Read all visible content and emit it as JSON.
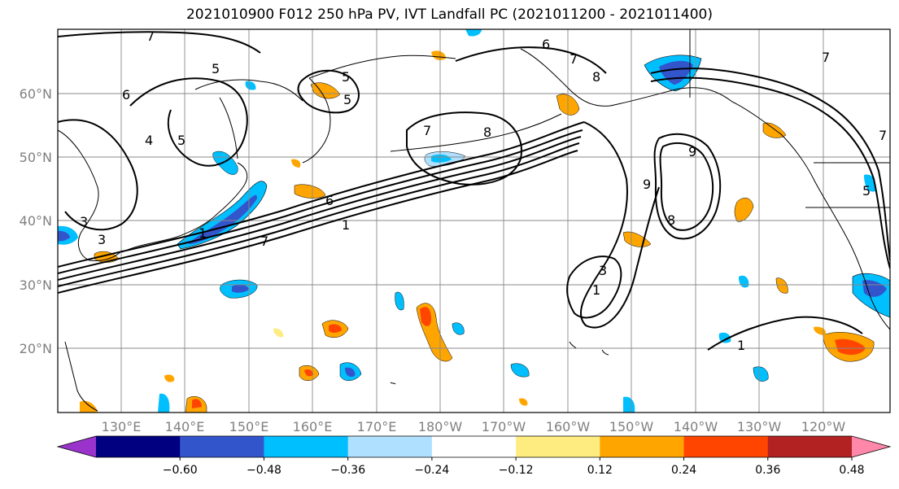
{
  "title": "2021010900 F012 250 hPa PV, IVT Landfall PC (2021011200 - 2021011400)",
  "lat_labels": [
    "60°N",
    "50°N",
    "40°N",
    "30°N",
    "20°N"
  ],
  "lon_labels": [
    "130°E",
    "140°E",
    "150°E",
    "160°E",
    "170°E",
    "180°W",
    "170°W",
    "160°W",
    "150°W",
    "140°W",
    "130°W",
    "120°W"
  ],
  "colorbar": {
    "ticks": [
      "−0.60",
      "−0.48",
      "−0.36",
      "−0.24",
      "−0.12",
      "0.12",
      "0.24",
      "0.36",
      "0.48",
      "0.60"
    ],
    "colors": [
      "#9933cc",
      "#000080",
      "#3355cc",
      "#00bfff",
      "#b0e0ff",
      "#ffffff",
      "#ffec80",
      "#ffa500",
      "#ff4500",
      "#b22222",
      "#ff88aa"
    ]
  },
  "contour_labels": [
    "7",
    "5",
    "6",
    "4",
    "5",
    "3",
    "5",
    "7",
    "6",
    "1",
    "7",
    "8",
    "1",
    "3",
    "9",
    "9",
    "8",
    "7",
    "1",
    "1",
    "5",
    "3",
    "7",
    "7",
    "6",
    "5",
    "8"
  ]
}
